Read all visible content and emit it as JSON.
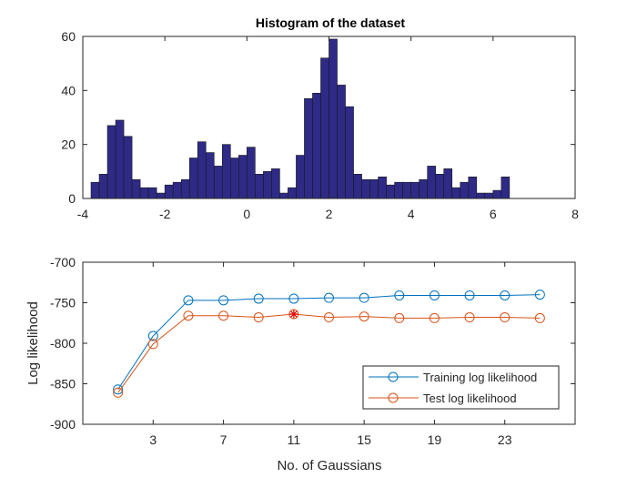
{
  "figure": {
    "background": "#ffffff"
  },
  "chart_data": [
    {
      "type": "bar",
      "title": "Histogram of the dataset",
      "xlabel": "",
      "ylabel": "",
      "xlim": [
        -4,
        8
      ],
      "ylim": [
        0,
        60
      ],
      "xticks": [
        "-4",
        "-2",
        "0",
        "2",
        "4",
        "6",
        "8"
      ],
      "yticks": [
        "0",
        "20",
        "40",
        "60"
      ],
      "bin_start": -3.8,
      "bin_width": 0.2,
      "values": [
        6,
        9,
        27,
        29,
        23,
        7,
        4,
        4,
        2,
        5,
        6,
        7,
        15,
        21,
        17,
        12,
        20,
        15,
        16,
        19,
        9,
        10,
        11,
        2,
        4,
        16,
        37,
        39,
        52,
        59,
        42,
        34,
        9,
        7,
        7,
        8,
        5,
        6,
        6,
        6,
        7,
        12,
        9,
        11,
        4,
        6,
        8,
        2,
        2,
        3,
        8
      ],
      "bar_color": "#2e2a86",
      "edge_color": "#1a1a1a",
      "grid": false
    },
    {
      "type": "line",
      "title": "",
      "xlabel": "No. of Gaussians",
      "ylabel": "Log likelihood",
      "xlim": [
        -1,
        27
      ],
      "ylim": [
        -900,
        -700
      ],
      "xticks": [
        "3",
        "7",
        "11",
        "15",
        "19",
        "23"
      ],
      "yticks": [
        "-900",
        "-850",
        "-800",
        "-750",
        "-700"
      ],
      "legend_position": "bottom-right",
      "grid": false,
      "series": [
        {
          "name": "Training log likelihood",
          "color": "#0072bd",
          "x": [
            1,
            3,
            5,
            7,
            9,
            11,
            13,
            15,
            17,
            19,
            21,
            23,
            25
          ],
          "values": [
            -857,
            -791,
            -747,
            -747,
            -745,
            -745,
            -744,
            -744,
            -741,
            -741,
            -741,
            -741,
            -740
          ]
        },
        {
          "name": "Test log likelihood",
          "color": "#d95319",
          "x": [
            1,
            3,
            5,
            7,
            9,
            11,
            13,
            15,
            17,
            19,
            21,
            23,
            25
          ],
          "values": [
            -861,
            -801,
            -766,
            -766,
            -768,
            -764,
            -768,
            -767,
            -769,
            -769,
            -768,
            -768,
            -769
          ]
        }
      ],
      "highlight": {
        "x": 11,
        "y": -764,
        "color": "#e00000"
      }
    }
  ]
}
